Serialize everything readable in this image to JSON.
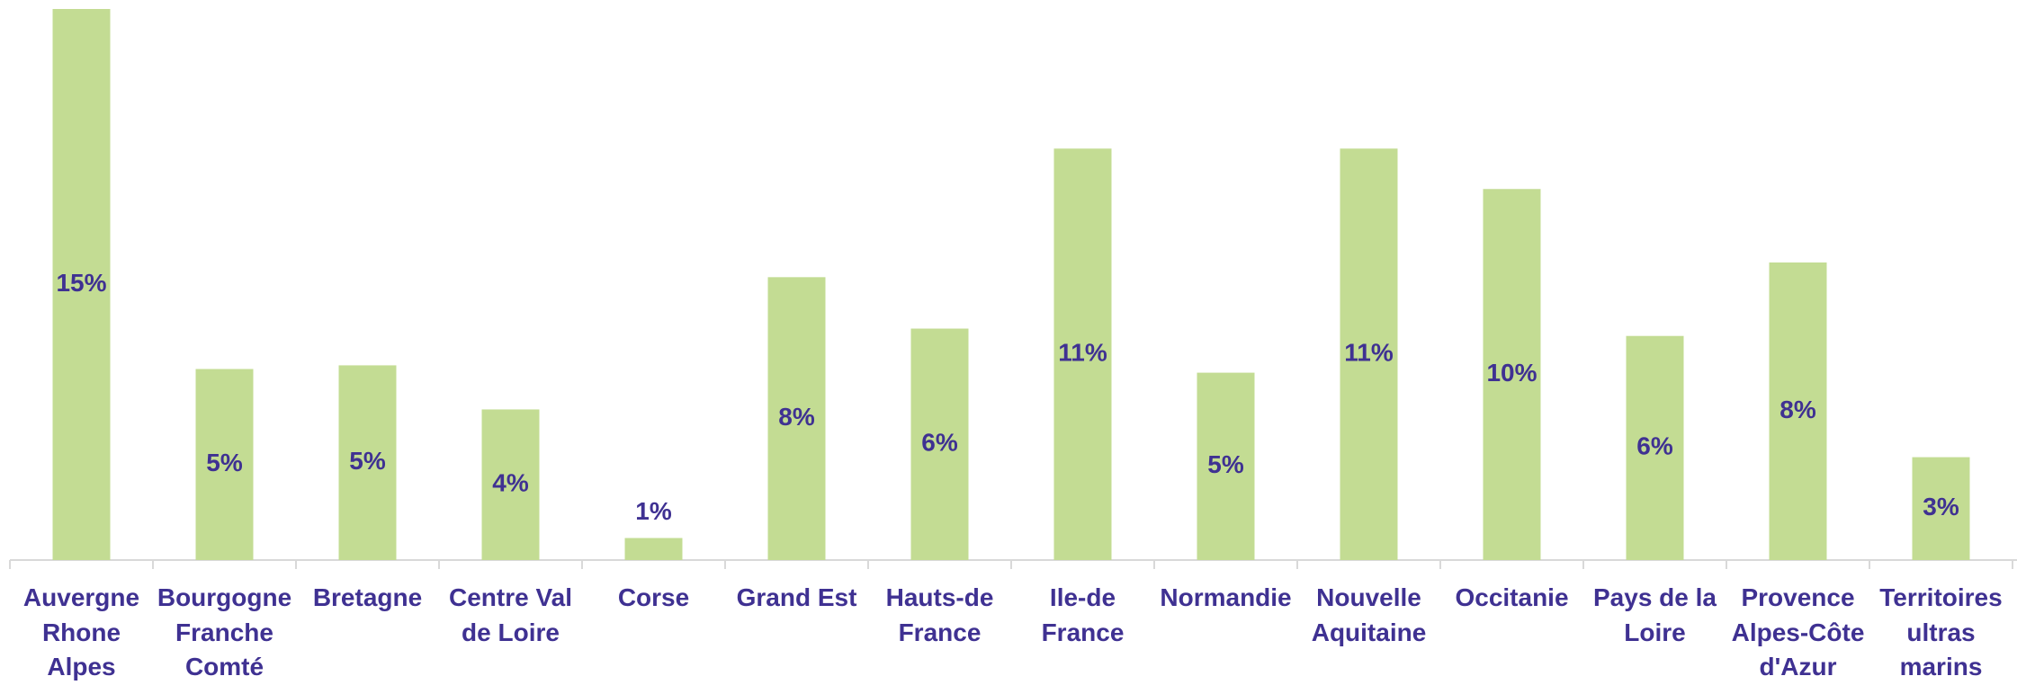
{
  "chart_data": {
    "type": "bar",
    "categories": [
      "Auvergne Rhone Alpes",
      "Bourgogne Franche Comté",
      "Bretagne",
      "Centre Val de Loire",
      "Corse",
      "Grand Est",
      "Hauts-de France",
      "Ile-de France",
      "Normandie",
      "Nouvelle Aquitaine",
      "Occitanie",
      "Pays de la Loire",
      "Provence Alpes-Côte d'Azur",
      "Territoires ultras marins"
    ],
    "values": [
      15,
      5.2,
      5.3,
      4.1,
      0.6,
      7.7,
      6.3,
      11.2,
      5.1,
      11.2,
      10.1,
      6.1,
      8.1,
      2.8
    ],
    "value_labels": [
      "15%",
      "5%",
      "5%",
      "4%",
      "1%",
      "8%",
      "6%",
      "11%",
      "5%",
      "11%",
      "10%",
      "6%",
      "8%",
      "3%"
    ],
    "color": "#c3dc93",
    "ylim": [
      0,
      15
    ]
  }
}
